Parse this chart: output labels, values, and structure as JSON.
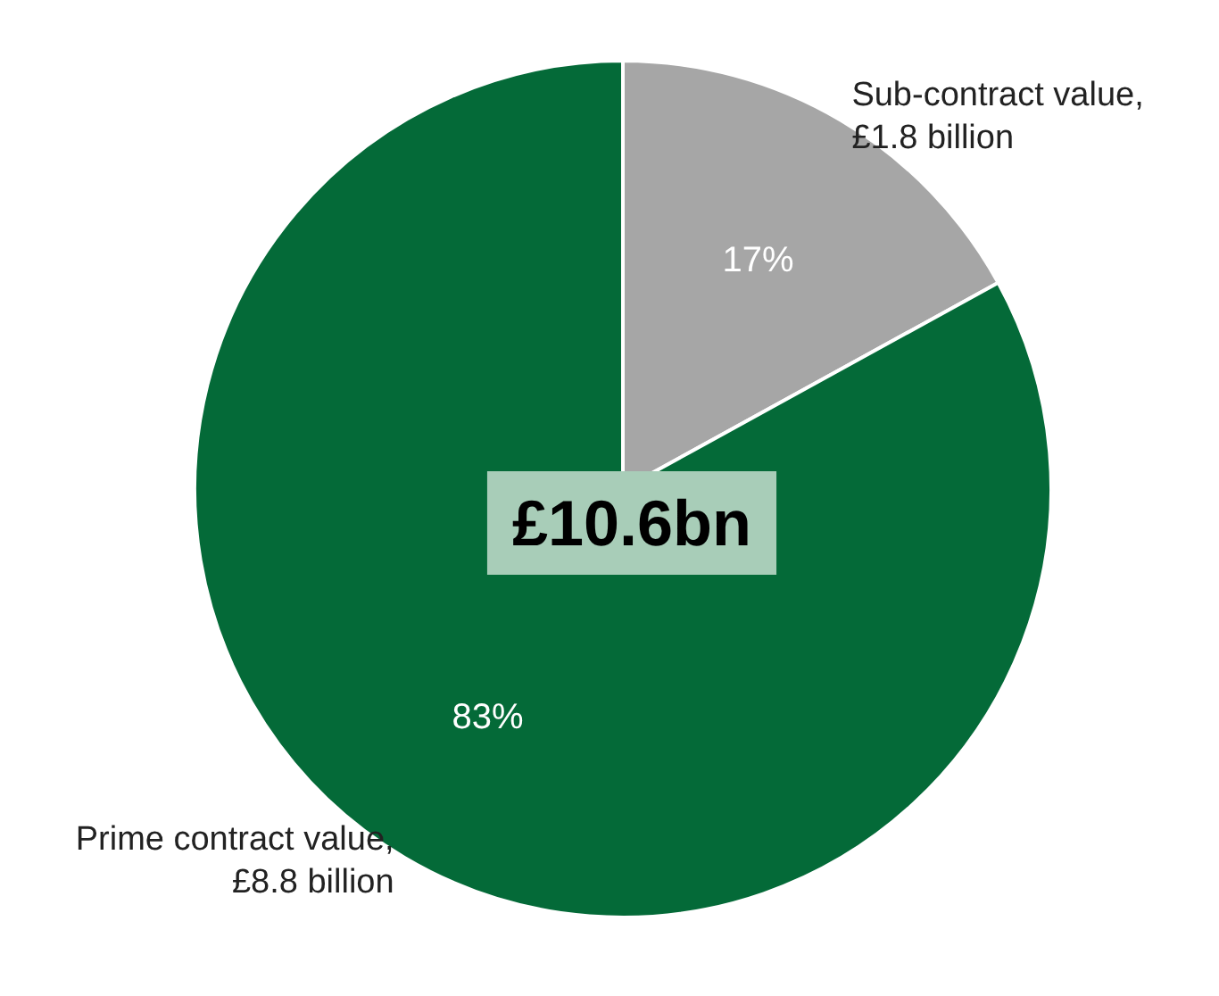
{
  "chart_data": {
    "type": "pie",
    "categories": [
      "Sub-contract value, £1.8 billion",
      "Prime contract value, £8.8 billion"
    ],
    "values": [
      17,
      83
    ],
    "value_labels": [
      "17%",
      "83%"
    ],
    "colors": [
      "#a6a6a6",
      "#046a38"
    ],
    "annotations": [
      "£10.6bn"
    ],
    "legend": false
  }
}
